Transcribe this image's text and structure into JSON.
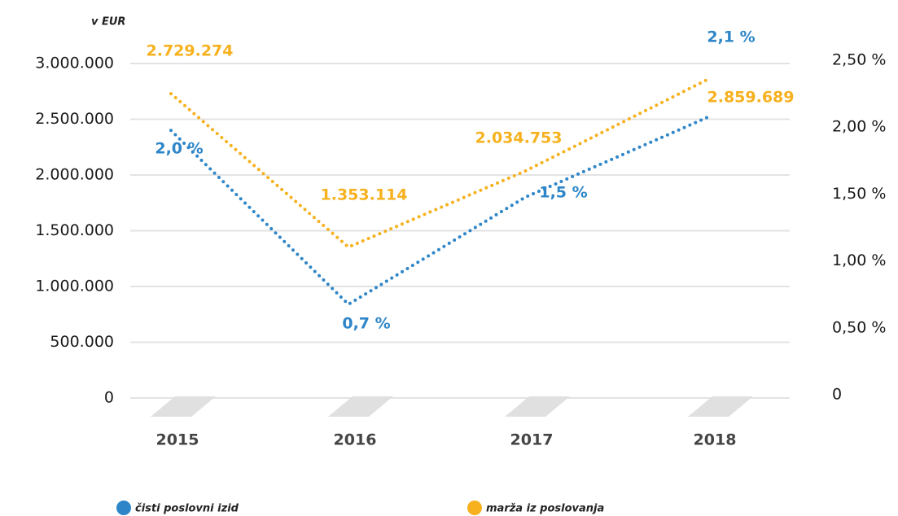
{
  "chart_data": {
    "type": "line",
    "y_label": "v EUR",
    "categories": [
      "2015",
      "2016",
      "2017",
      "2018"
    ],
    "series": [
      {
        "name": "čisti poslovni izid",
        "color": "#2e86c8",
        "axis": "y2",
        "values": [
          2.0,
          0.7,
          1.5,
          2.1
        ],
        "value_labels": [
          "2,0 %",
          "0,7 %",
          "1,5 %",
          "2,1 %"
        ]
      },
      {
        "name": "marža iz poslovanja",
        "color": "#f7b11e",
        "values": [
          2729274,
          1353114,
          2034753,
          2859689
        ],
        "value_labels": [
          "2.729.274",
          "1.353.114",
          "2.034.753",
          "2.859.689"
        ]
      }
    ],
    "ylim": [
      0,
      3000000
    ],
    "yticks": [
      0,
      {
        "value": 500000,
        "label": "500.000"
      },
      {
        "value": 1000000,
        "label": "1.000.000"
      },
      {
        "value": 1500000,
        "label": "1.500.000"
      },
      {
        "value": 2000000,
        "label": "2.000.000"
      },
      {
        "value": 2500000,
        "label": "2.500.000"
      },
      {
        "value": 3000000,
        "label": "3.000.000"
      }
    ],
    "y2lim": [
      0,
      2.5
    ],
    "y2ticks": [
      0,
      {
        "value": 0.5,
        "label": "0,50 %"
      },
      {
        "value": 1.0,
        "label": "1,00 %"
      },
      {
        "value": 1.5,
        "label": "1,50 %"
      },
      {
        "value": 2.0,
        "label": "2,00 %"
      },
      {
        "value": 2.5,
        "label": "2,50 %"
      }
    ],
    "grid": true
  }
}
